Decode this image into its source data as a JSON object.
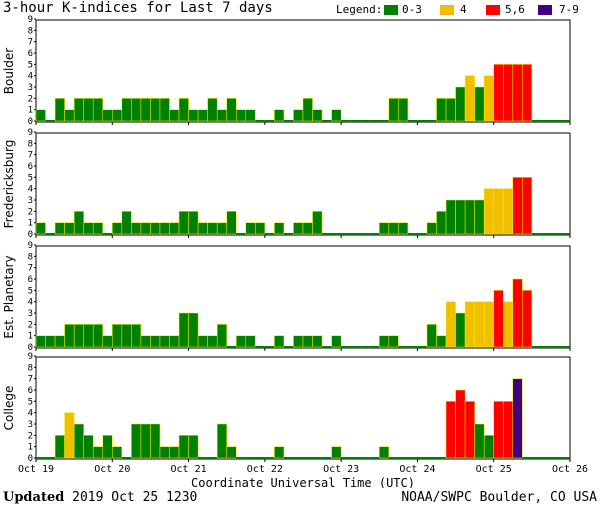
{
  "title": "3-hour K-indices for Last 7 days",
  "legend": {
    "label": "Legend:",
    "items": [
      {
        "label": "0-3",
        "color": "#008000"
      },
      {
        "label": "4",
        "color": "#f0c000"
      },
      {
        "label": "5,6",
        "color": "#ff0000"
      },
      {
        "label": "7-9",
        "color": "#400080"
      }
    ]
  },
  "footer": {
    "updated_label": "Updated",
    "updated_value": "2019 Oct 25 1230",
    "source": "NOAA/SWPC Boulder, CO USA"
  },
  "chart_data": {
    "type": "bar",
    "xlabel": "Coordinate Universal Time (UTC)",
    "x_ticks": [
      "Oct 19",
      "Oct 20",
      "Oct 21",
      "Oct 22",
      "Oct 23",
      "Oct 24",
      "Oct 25",
      "Oct 26"
    ],
    "y_ticks": [
      0,
      1,
      2,
      3,
      4,
      5,
      6,
      7,
      8,
      9
    ],
    "ylim": [
      0,
      9
    ],
    "bins_per_day": 8,
    "days": 7,
    "series": [
      {
        "name": "Boulder",
        "values": [
          1,
          0,
          2,
          1,
          2,
          2,
          2,
          1,
          1,
          2,
          2,
          2,
          2,
          2,
          1,
          2,
          1,
          1,
          2,
          1,
          2,
          1,
          1,
          0,
          0,
          1,
          0,
          1,
          2,
          1,
          0,
          1,
          0,
          0,
          0,
          0,
          0,
          2,
          2,
          0,
          0,
          0,
          2,
          2,
          3,
          4,
          3,
          4,
          5,
          5,
          5,
          5,
          0,
          0,
          0,
          0
        ]
      },
      {
        "name": "Fredericksburg",
        "values": [
          1,
          0,
          1,
          1,
          2,
          1,
          1,
          0,
          1,
          2,
          1,
          1,
          1,
          1,
          1,
          2,
          2,
          1,
          1,
          1,
          2,
          0,
          1,
          1,
          0,
          1,
          0,
          1,
          1,
          2,
          0,
          0,
          0,
          0,
          0,
          0,
          1,
          1,
          1,
          0,
          0,
          1,
          2,
          3,
          3,
          3,
          3,
          4,
          4,
          4,
          5,
          5,
          0,
          0,
          0,
          0
        ]
      },
      {
        "name": "Est. Planetary",
        "values": [
          1,
          1,
          1,
          2,
          2,
          2,
          2,
          1,
          2,
          2,
          2,
          1,
          1,
          1,
          1,
          3,
          3,
          1,
          1,
          2,
          0,
          1,
          1,
          0,
          0,
          1,
          0,
          1,
          1,
          1,
          0,
          1,
          0,
          0,
          0,
          0,
          1,
          1,
          0,
          0,
          0,
          2,
          1,
          4,
          3,
          4,
          4,
          4,
          5,
          4,
          6,
          5,
          0,
          0,
          0,
          0
        ]
      },
      {
        "name": "College",
        "values": [
          0,
          0,
          2,
          4,
          3,
          2,
          1,
          2,
          1,
          0,
          3,
          3,
          3,
          1,
          1,
          2,
          2,
          0,
          0,
          3,
          1,
          0,
          0,
          0,
          0,
          1,
          0,
          0,
          0,
          0,
          0,
          1,
          0,
          0,
          0,
          0,
          1,
          0,
          0,
          0,
          0,
          0,
          0,
          5,
          6,
          5,
          3,
          2,
          5,
          5,
          7,
          0,
          0,
          0,
          0,
          0
        ]
      }
    ]
  }
}
